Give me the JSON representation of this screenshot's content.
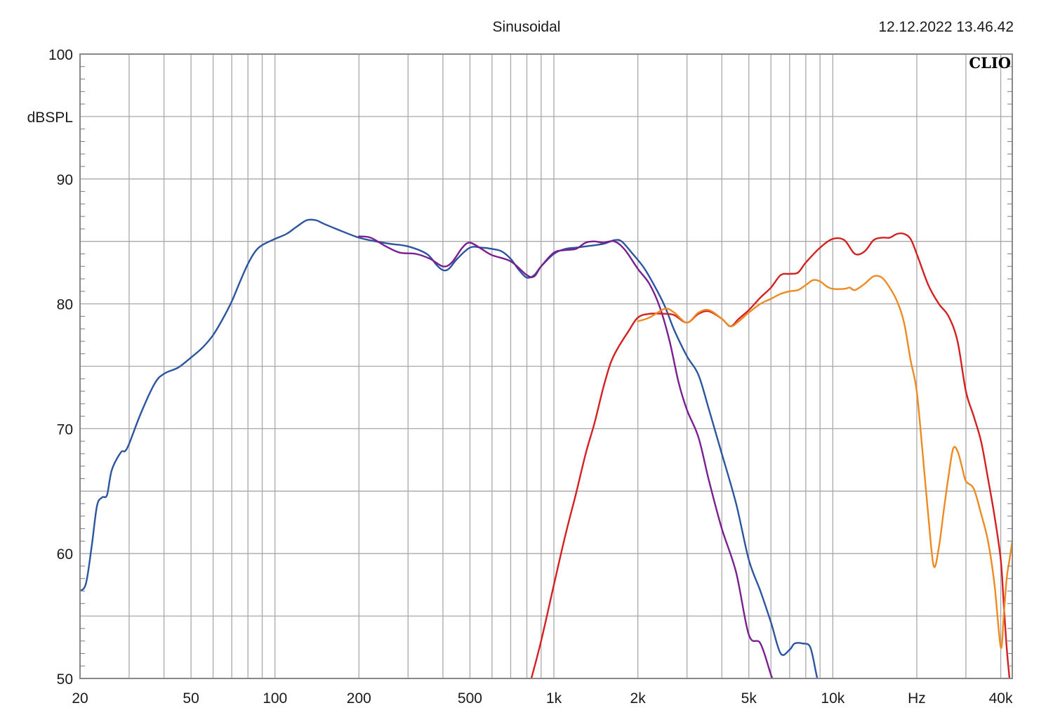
{
  "chart_data": {
    "type": "line",
    "title": "Sinusoidal",
    "timestamp": "12.12.2022 13.46.42",
    "brand": "CLIO",
    "ylabel": "dBSPL",
    "x_scale": "log",
    "xlim": [
      20,
      44000
    ],
    "ylim": [
      50,
      100
    ],
    "x_ticks": [
      {
        "value": 20,
        "label": "20"
      },
      {
        "value": 50,
        "label": "50"
      },
      {
        "value": 100,
        "label": "100"
      },
      {
        "value": 200,
        "label": "200"
      },
      {
        "value": 500,
        "label": "500"
      },
      {
        "value": 1000,
        "label": "1k"
      },
      {
        "value": 2000,
        "label": "2k"
      },
      {
        "value": 5000,
        "label": "5k"
      },
      {
        "value": 10000,
        "label": "10k"
      },
      {
        "value": 20000,
        "label": "Hz"
      },
      {
        "value": 40000,
        "label": "40k"
      }
    ],
    "y_ticks": [
      {
        "value": 100,
        "label": "100"
      },
      {
        "value": 90,
        "label": "90"
      },
      {
        "value": 80,
        "label": "80"
      },
      {
        "value": 70,
        "label": "70"
      },
      {
        "value": 60,
        "label": "60"
      },
      {
        "value": 50,
        "label": "50"
      }
    ],
    "grid": true,
    "colors": {
      "grid": "#a8a8a8",
      "frame": "#888888",
      "blue": "#2c55a0",
      "purple": "#7a1e90",
      "red": "#d42020",
      "orange": "#ee8a22"
    },
    "series": [
      {
        "color_key": "blue",
        "points": [
          [
            20,
            57
          ],
          [
            21,
            57.6
          ],
          [
            22,
            60.5
          ],
          [
            23,
            63.8
          ],
          [
            24,
            64.5
          ],
          [
            25,
            64.7
          ],
          [
            26,
            66.7
          ],
          [
            28,
            68.1
          ],
          [
            29,
            68.2
          ],
          [
            30,
            68.8
          ],
          [
            33,
            71.2
          ],
          [
            37,
            73.6
          ],
          [
            40,
            74.4
          ],
          [
            45,
            74.9
          ],
          [
            50,
            75.7
          ],
          [
            55,
            76.5
          ],
          [
            60,
            77.5
          ],
          [
            65,
            78.8
          ],
          [
            70,
            80.2
          ],
          [
            75,
            81.8
          ],
          [
            80,
            83.2
          ],
          [
            85,
            84.2
          ],
          [
            90,
            84.7
          ],
          [
            100,
            85.2
          ],
          [
            110,
            85.6
          ],
          [
            120,
            86.2
          ],
          [
            130,
            86.7
          ],
          [
            140,
            86.7
          ],
          [
            150,
            86.4
          ],
          [
            170,
            85.9
          ],
          [
            200,
            85.3
          ],
          [
            230,
            85
          ],
          [
            260,
            84.8
          ],
          [
            300,
            84.6
          ],
          [
            350,
            84
          ],
          [
            380,
            83.1
          ],
          [
            400,
            82.7
          ],
          [
            420,
            82.8
          ],
          [
            450,
            83.6
          ],
          [
            500,
            84.5
          ],
          [
            550,
            84.5
          ],
          [
            600,
            84.4
          ],
          [
            650,
            84.2
          ],
          [
            700,
            83.6
          ],
          [
            750,
            82.7
          ],
          [
            800,
            82.1
          ],
          [
            850,
            82.3
          ],
          [
            900,
            83
          ],
          [
            1000,
            84
          ],
          [
            1100,
            84.4
          ],
          [
            1200,
            84.5
          ],
          [
            1300,
            84.6
          ],
          [
            1500,
            84.8
          ],
          [
            1650,
            85.1
          ],
          [
            1750,
            85
          ],
          [
            1900,
            84.1
          ],
          [
            2100,
            82.9
          ],
          [
            2300,
            81.4
          ],
          [
            2500,
            79.8
          ],
          [
            2700,
            77.9
          ],
          [
            3000,
            75.8
          ],
          [
            3300,
            74.3
          ],
          [
            3600,
            71.5
          ],
          [
            4000,
            68
          ],
          [
            4500,
            64
          ],
          [
            5000,
            59.5
          ],
          [
            5500,
            57
          ],
          [
            6000,
            54.5
          ],
          [
            6500,
            52
          ],
          [
            7000,
            52.3
          ],
          [
            7300,
            52.8
          ],
          [
            7800,
            52.8
          ],
          [
            8300,
            52.5
          ],
          [
            8700,
            50.5
          ],
          [
            8900,
            49.5
          ]
        ]
      },
      {
        "color_key": "purple",
        "points": [
          [
            200,
            85.4
          ],
          [
            220,
            85.3
          ],
          [
            250,
            84.6
          ],
          [
            280,
            84.1
          ],
          [
            320,
            84
          ],
          [
            360,
            83.6
          ],
          [
            400,
            83
          ],
          [
            430,
            83.3
          ],
          [
            470,
            84.5
          ],
          [
            500,
            84.9
          ],
          [
            550,
            84.4
          ],
          [
            600,
            83.9
          ],
          [
            700,
            83.4
          ],
          [
            800,
            82.3
          ],
          [
            850,
            82.2
          ],
          [
            900,
            83
          ],
          [
            1000,
            84.1
          ],
          [
            1100,
            84.3
          ],
          [
            1200,
            84.4
          ],
          [
            1300,
            84.9
          ],
          [
            1400,
            85
          ],
          [
            1500,
            84.9
          ],
          [
            1650,
            85
          ],
          [
            1800,
            84.3
          ],
          [
            2000,
            82.8
          ],
          [
            2200,
            81.6
          ],
          [
            2400,
            79.7
          ],
          [
            2600,
            77
          ],
          [
            2800,
            73.7
          ],
          [
            3000,
            71.5
          ],
          [
            3300,
            69.3
          ],
          [
            3600,
            65.8
          ],
          [
            4000,
            62
          ],
          [
            4500,
            58.5
          ],
          [
            5000,
            53.5
          ],
          [
            5500,
            52.8
          ],
          [
            6000,
            50.3
          ],
          [
            6200,
            49.5
          ]
        ]
      },
      {
        "color_key": "red",
        "points": [
          [
            830,
            50
          ],
          [
            900,
            53
          ],
          [
            1000,
            57.5
          ],
          [
            1100,
            61.5
          ],
          [
            1200,
            64.8
          ],
          [
            1300,
            68
          ],
          [
            1400,
            70.5
          ],
          [
            1500,
            73.2
          ],
          [
            1600,
            75.3
          ],
          [
            1700,
            76.5
          ],
          [
            1850,
            77.8
          ],
          [
            2000,
            78.9
          ],
          [
            2200,
            79.2
          ],
          [
            2500,
            79.2
          ],
          [
            2700,
            79.1
          ],
          [
            3000,
            78.5
          ],
          [
            3300,
            79.2
          ],
          [
            3600,
            79.4
          ],
          [
            4000,
            78.8
          ],
          [
            4300,
            78.2
          ],
          [
            4600,
            78.8
          ],
          [
            5000,
            79.5
          ],
          [
            5500,
            80.5
          ],
          [
            6000,
            81.3
          ],
          [
            6500,
            82.3
          ],
          [
            7000,
            82.4
          ],
          [
            7500,
            82.5
          ],
          [
            8000,
            83.3
          ],
          [
            9000,
            84.5
          ],
          [
            10000,
            85.2
          ],
          [
            11000,
            85.1
          ],
          [
            12000,
            84
          ],
          [
            13000,
            84.2
          ],
          [
            14000,
            85.1
          ],
          [
            15000,
            85.3
          ],
          [
            16000,
            85.3
          ],
          [
            17000,
            85.6
          ],
          [
            18000,
            85.6
          ],
          [
            19000,
            85.2
          ],
          [
            20000,
            84
          ],
          [
            22000,
            81.5
          ],
          [
            24000,
            80
          ],
          [
            26000,
            79
          ],
          [
            28000,
            77
          ],
          [
            30000,
            73
          ],
          [
            32000,
            71
          ],
          [
            34000,
            69
          ],
          [
            36000,
            66
          ],
          [
            38000,
            63
          ],
          [
            40000,
            59.5
          ],
          [
            41000,
            56
          ],
          [
            42000,
            52.5
          ],
          [
            43000,
            50
          ]
        ]
      },
      {
        "color_key": "orange",
        "points": [
          [
            2000,
            78.6
          ],
          [
            2200,
            78.9
          ],
          [
            2500,
            79.6
          ],
          [
            2700,
            79.3
          ],
          [
            3000,
            78.5
          ],
          [
            3300,
            79.3
          ],
          [
            3600,
            79.5
          ],
          [
            4000,
            78.8
          ],
          [
            4300,
            78.2
          ],
          [
            4600,
            78.6
          ],
          [
            5000,
            79.3
          ],
          [
            5500,
            80
          ],
          [
            6000,
            80.4
          ],
          [
            6500,
            80.8
          ],
          [
            7000,
            81
          ],
          [
            7500,
            81.1
          ],
          [
            8000,
            81.5
          ],
          [
            8500,
            81.9
          ],
          [
            9000,
            81.8
          ],
          [
            9500,
            81.4
          ],
          [
            10000,
            81.2
          ],
          [
            11000,
            81.2
          ],
          [
            11500,
            81.3
          ],
          [
            12000,
            81.1
          ],
          [
            13000,
            81.6
          ],
          [
            14000,
            82.2
          ],
          [
            15000,
            82.1
          ],
          [
            16000,
            81.3
          ],
          [
            17000,
            80.2
          ],
          [
            18000,
            78.5
          ],
          [
            19000,
            75.5
          ],
          [
            20000,
            73
          ],
          [
            21000,
            68
          ],
          [
            22000,
            63
          ],
          [
            23000,
            59
          ],
          [
            24000,
            60.5
          ],
          [
            25000,
            63.5
          ],
          [
            26000,
            66.2
          ],
          [
            27000,
            68.4
          ],
          [
            28000,
            68.2
          ],
          [
            29000,
            67
          ],
          [
            30000,
            65.8
          ],
          [
            32000,
            65.2
          ],
          [
            34000,
            63.2
          ],
          [
            36000,
            61
          ],
          [
            38000,
            57.5
          ],
          [
            40000,
            52.5
          ],
          [
            41000,
            55
          ],
          [
            42000,
            58
          ],
          [
            43000,
            59.5
          ],
          [
            44000,
            61
          ]
        ]
      }
    ]
  }
}
